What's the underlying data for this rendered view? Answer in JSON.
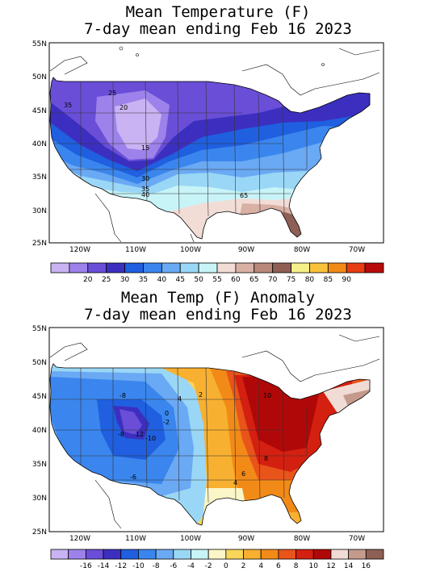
{
  "top_panel": {
    "title_line1": "Mean Temperature (F)",
    "title_line2": "7-day mean ending Feb 16 2023",
    "lat_labels": [
      "55N",
      "50N",
      "45N",
      "40N",
      "35N",
      "30N",
      "25N"
    ],
    "lon_labels": [
      "120W",
      "110W",
      "100W",
      "90W",
      "80W",
      "70W"
    ],
    "contour_labels": [
      {
        "text": "35"
      },
      {
        "text": "25"
      },
      {
        "text": "20"
      },
      {
        "text": "15"
      },
      {
        "text": "30"
      },
      {
        "text": "35"
      },
      {
        "text": "40"
      },
      {
        "text": "65"
      }
    ],
    "colorbar": {
      "colors": [
        "#c9b3f2",
        "#9c82ea",
        "#6a4ed8",
        "#3c2fc0",
        "#1f5fe0",
        "#3a86ee",
        "#6aa9f4",
        "#9ad7f6",
        "#c8f4f8",
        "#f2ddd6",
        "#d8b0a4",
        "#b98a7c",
        "#8e5f55",
        "#f6f08a",
        "#f8c23a",
        "#f28a18",
        "#e83c12",
        "#b80a0a"
      ],
      "labels": [
        "20",
        "25",
        "30",
        "35",
        "40",
        "45",
        "50",
        "55",
        "60",
        "65",
        "70",
        "75",
        "80",
        "85",
        "90"
      ]
    }
  },
  "bottom_panel": {
    "title_line1": "Mean Temp (F) Anomaly",
    "title_line2": "7-day mean ending Feb 16 2023",
    "lat_labels": [
      "55N",
      "50N",
      "45N",
      "40N",
      "35N",
      "30N",
      "25N"
    ],
    "lon_labels": [
      "120W",
      "110W",
      "100W",
      "90W",
      "80W",
      "70W"
    ],
    "contour_labels": [
      {
        "text": "-8"
      },
      {
        "text": "4"
      },
      {
        "text": "2"
      },
      {
        "text": "0"
      },
      {
        "text": "-2"
      },
      {
        "text": "-8"
      },
      {
        "text": "-12"
      },
      {
        "text": "-10"
      },
      {
        "text": "-6"
      },
      {
        "text": "10"
      },
      {
        "text": "8"
      },
      {
        "text": "6"
      },
      {
        "text": "4"
      }
    ],
    "colorbar": {
      "colors": [
        "#c9b3f2",
        "#9c82ea",
        "#6a4ed8",
        "#3c2fc0",
        "#1f5fe0",
        "#3a86ee",
        "#6aa9f4",
        "#9ad7f6",
        "#c8f4f8",
        "#fbf6c8",
        "#f8d65a",
        "#f8b030",
        "#f28a18",
        "#e8541a",
        "#d42010",
        "#b00808",
        "#f0dcd4",
        "#c49a8c",
        "#8e5f55"
      ],
      "labels": [
        "-16",
        "-14",
        "-12",
        "-10",
        "-8",
        "-6",
        "-4",
        "-2",
        "0",
        "2",
        "4",
        "6",
        "8",
        "10",
        "12",
        "14",
        "16"
      ]
    }
  }
}
